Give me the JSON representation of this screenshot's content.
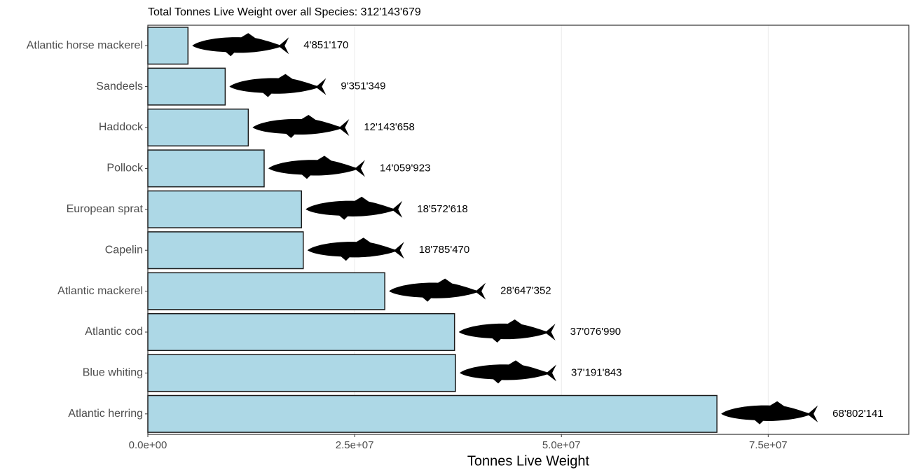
{
  "chart_data": {
    "type": "bar",
    "orientation": "horizontal",
    "title": "Total Tonnes Live Weight over all Species: 312'143'679",
    "x_label": "Tonnes Live Weight",
    "categories": [
      "Atlantic horse mackerel",
      "Sandeels",
      "Haddock",
      "Pollock",
      "European sprat",
      "Capelin",
      "Atlantic mackerel",
      "Atlantic cod",
      "Blue whiting",
      "Atlantic herring"
    ],
    "values": [
      4851170,
      9351349,
      12143658,
      14059923,
      18572618,
      18785470,
      28647352,
      37076990,
      37191843,
      68802141
    ],
    "value_labels": [
      "4'851'170",
      "9'351'349",
      "12'143'658",
      "14'059'923",
      "18'572'618",
      "18'785'470",
      "28'647'352",
      "37'076'990",
      "37'191'843",
      "68'802'141"
    ],
    "color": "#add8e6",
    "xlim": [
      0,
      92000000
    ],
    "xticks": [
      {
        "value": 0,
        "label": "0.0e+00"
      },
      {
        "value": 25000000,
        "label": "2.5e+07"
      },
      {
        "value": 50000000,
        "label": "5.0e+07"
      },
      {
        "value": 75000000,
        "label": "7.5e+07"
      }
    ],
    "grid": true
  }
}
